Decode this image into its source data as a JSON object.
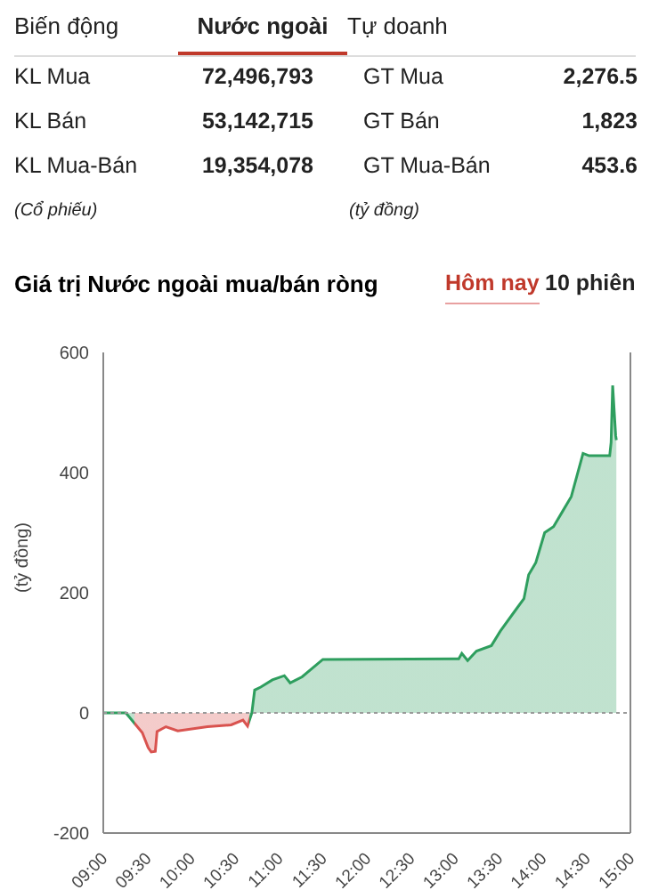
{
  "chart_data": [
    {
      "type": "other",
      "annotations": [
        "Biến động",
        "Nước ngoài",
        "Tự doanh",
        "KL Mua",
        "72,496,793",
        "GT Mua",
        "2,276.5",
        "KL Bán",
        "53,142,715",
        "GT Bán",
        "1,823",
        "KL Mua-Bán",
        "19,354,078",
        "GT Mua-Bán",
        "453.6",
        "(Cổ phiếu)",
        "(tỷ đồng)"
      ]
    },
    {
      "type": "area",
      "title": "Giá trị Nước ngoài mua/bán ròng",
      "ylabel": "(tỷ đồng)",
      "annotations": [
        "Hôm nay",
        "10 phiên"
      ],
      "series": [
        {
          "colors": [
            "#2e9e5e",
            "#2e9e5e",
            "#d9534f",
            "#d9534f",
            "#d9534f",
            "#d9534f",
            "#d9534f",
            "#d9534f",
            "#d9534f",
            "#d9534f",
            "#d9534f",
            "#d9534f",
            "#d9534f",
            "#2e9e5e",
            "#2e9e5e",
            "#2e9e5e",
            "#2e9e5e",
            "#2e9e5e",
            "#2e9e5e",
            "#2e9e5e",
            "#2e9e5e",
            "#2e9e5e",
            "#2e9e5e",
            "#2e9e5e",
            "#2e9e5e",
            "#2e9e5e",
            "#2e9e5e",
            "#2e9e5e",
            "#2e9e5e",
            "#2e9e5e",
            "#2e9e5e",
            "#2e9e5e",
            "#2e9e5e",
            "#2e9e5e",
            "#2e9e5e",
            "#2e9e5e",
            "#2e9e5e",
            "#2e9e5e",
            "#2e9e5e",
            "#2e9e5e",
            "#2e9e5e",
            "#2e9e5e"
          ],
          "x": [
            9,
            9.257,
            9.444,
            9.511,
            9.545,
            9.592,
            9.612,
            9.713,
            9.848,
            10.186,
            10.455,
            10.59,
            10.642,
            10.691,
            10.723,
            10.792,
            10.925,
            11.061,
            11.127,
            11.263,
            11.499,
            13.046,
            13.081,
            13.147,
            13.248,
            13.418,
            13.519,
            13.687,
            13.788,
            13.842,
            13.923,
            14.024,
            14.125,
            14.226,
            14.327,
            14.461,
            14.529,
            14.764,
            14.78,
            14.798,
            14.832,
            14.84
          ],
          "values": [
            0,
            0,
            -33,
            -58,
            -65,
            -64,
            -31,
            -23,
            -30,
            -23,
            -20,
            -12,
            -22,
            0,
            38,
            43,
            55,
            62,
            50,
            60,
            89,
            90,
            99,
            87,
            103,
            112,
            136,
            170,
            190,
            230,
            250,
            300,
            310,
            335,
            360,
            432,
            428,
            428,
            450,
            545,
            462,
            454
          ]
        }
      ],
      "xlim": [
        9,
        15
      ],
      "xticks": [
        {
          "value": 9,
          "label": "09:00"
        },
        {
          "value": 9.5,
          "label": "09:30"
        },
        {
          "value": 10,
          "label": "10:00"
        },
        {
          "value": 10.5,
          "label": "10:30"
        },
        {
          "value": 11,
          "label": "11:00"
        },
        {
          "value": 11.5,
          "label": "11:30"
        },
        {
          "value": 12,
          "label": "12:00"
        },
        {
          "value": 12.5,
          "label": "12:30"
        },
        {
          "value": 13,
          "label": "13:00"
        },
        {
          "value": 13.5,
          "label": "13:30"
        },
        {
          "value": 14,
          "label": "14:00"
        },
        {
          "value": 14.5,
          "label": "14:30"
        },
        {
          "value": 15,
          "label": "15:00"
        }
      ],
      "ylim": [
        -200,
        600
      ],
      "yticks": [
        -200,
        0,
        200,
        400,
        600
      ],
      "ref_lines": [
        {
          "axis": "y",
          "value": 0,
          "color": "#999999",
          "line_style": "dotted"
        }
      ],
      "grid": false,
      "legend": false
    }
  ]
}
